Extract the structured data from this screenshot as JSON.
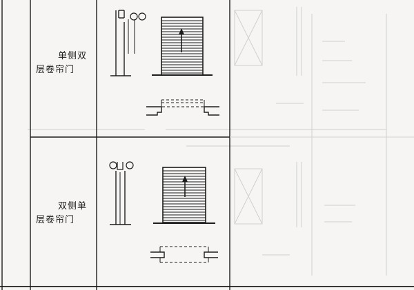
{
  "rows": [
    {
      "name_line1": "单侧双",
      "name_line2": "层卷帘门"
    },
    {
      "name_line1": "双侧单",
      "name_line2": "层卷帘门"
    }
  ],
  "colors": {
    "line": "#1c1c1c",
    "faint": "#c9c9c6",
    "paper": "#f6f5f3"
  }
}
